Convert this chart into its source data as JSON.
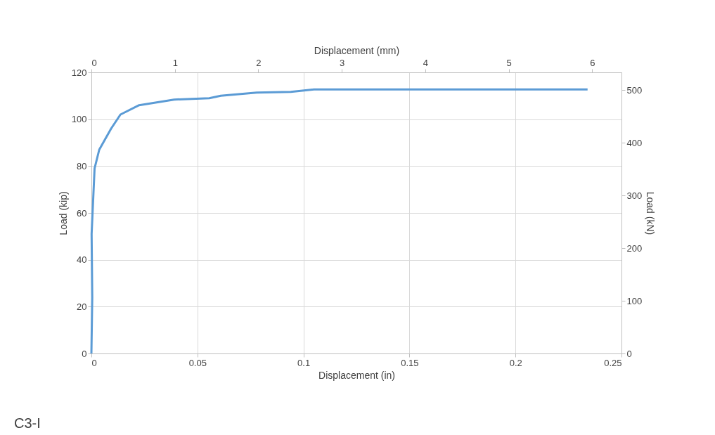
{
  "chart_data": {
    "type": "line",
    "xlabel": "Displacement (in)",
    "ylabel": "Load (kip)",
    "x2label": "Displacement (mm)",
    "y2label": "Load (kN)",
    "annotations": [
      "C3-I"
    ],
    "xlim": [
      0,
      0.25
    ],
    "xticks": [
      0,
      0.05,
      0.1,
      0.15,
      0.2,
      0.25
    ],
    "ylim": [
      0,
      120
    ],
    "yticks": [
      0,
      20,
      40,
      60,
      80,
      100,
      120
    ],
    "x2lim": [
      0,
      6.35
    ],
    "x2ticks": [
      0,
      1,
      2,
      3,
      4,
      5,
      6
    ],
    "y2lim": [
      0,
      533.8
    ],
    "y2ticks": [
      0,
      100,
      200,
      300,
      400,
      500
    ],
    "grid": true,
    "marker": "none",
    "line_style": "solid",
    "series": [
      {
        "color": "#5b9bd5",
        "x": [
          0,
          0.0004,
          0.0001,
          0.0015,
          0.0037,
          0.0093,
          0.0137,
          0.0225,
          0.039,
          0.0556,
          0.061,
          0.078,
          0.094,
          0.105,
          0.234
        ],
        "values": [
          0,
          24,
          51,
          79,
          87,
          96,
          102,
          106,
          108.4,
          109,
          110,
          111.4,
          111.7,
          112.7,
          112.7
        ]
      }
    ]
  }
}
